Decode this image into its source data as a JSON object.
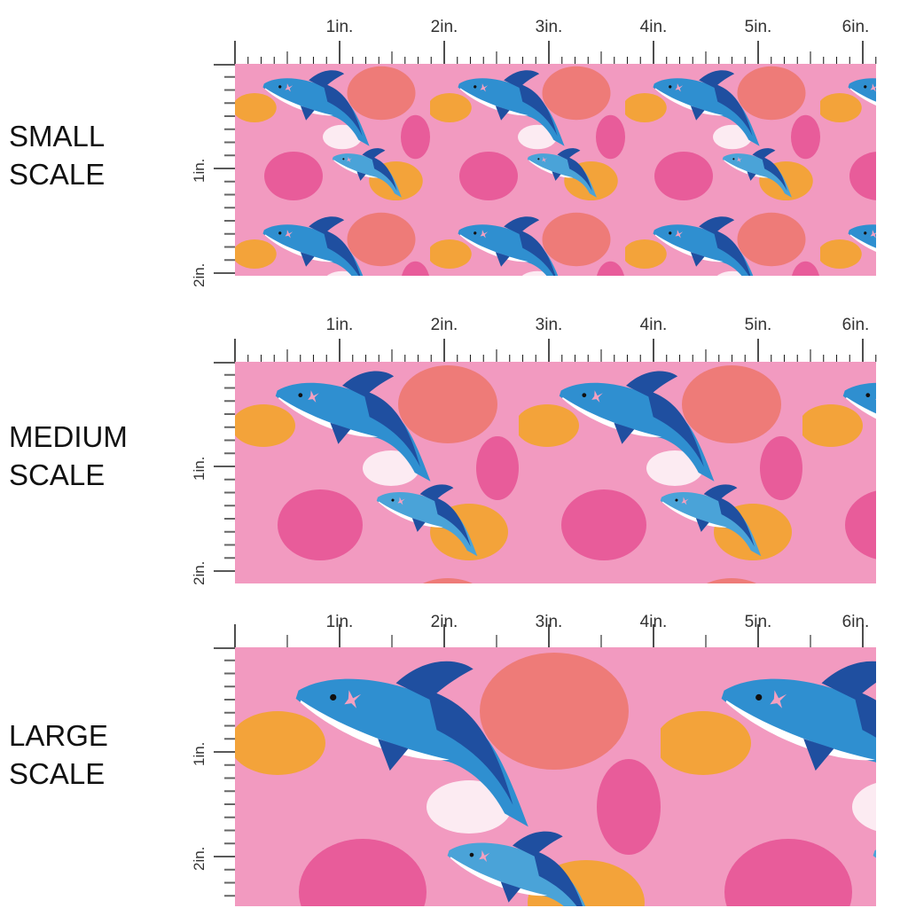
{
  "panels": [
    {
      "label_line1": "SMALL",
      "label_line2": "SCALE",
      "scale": 0.55
    },
    {
      "label_line1": "MEDIUM",
      "label_line2": "SCALE",
      "scale": 0.8
    },
    {
      "label_line1": "LARGE",
      "label_line2": "SCALE",
      "scale": 1.2
    }
  ],
  "ruler": {
    "h_labels": [
      "1in.",
      "2in.",
      "3in.",
      "4in.",
      "5in.",
      "6in."
    ],
    "v_labels": [
      "1in.",
      "2in."
    ]
  },
  "colors": {
    "pink": "#f29ac0",
    "hotpink": "#e85c9a",
    "coral": "#ee7b78",
    "orange": "#f3a33a",
    "blue": "#2f8fd0",
    "navy": "#1f4fa0",
    "white": "#ffffff"
  }
}
